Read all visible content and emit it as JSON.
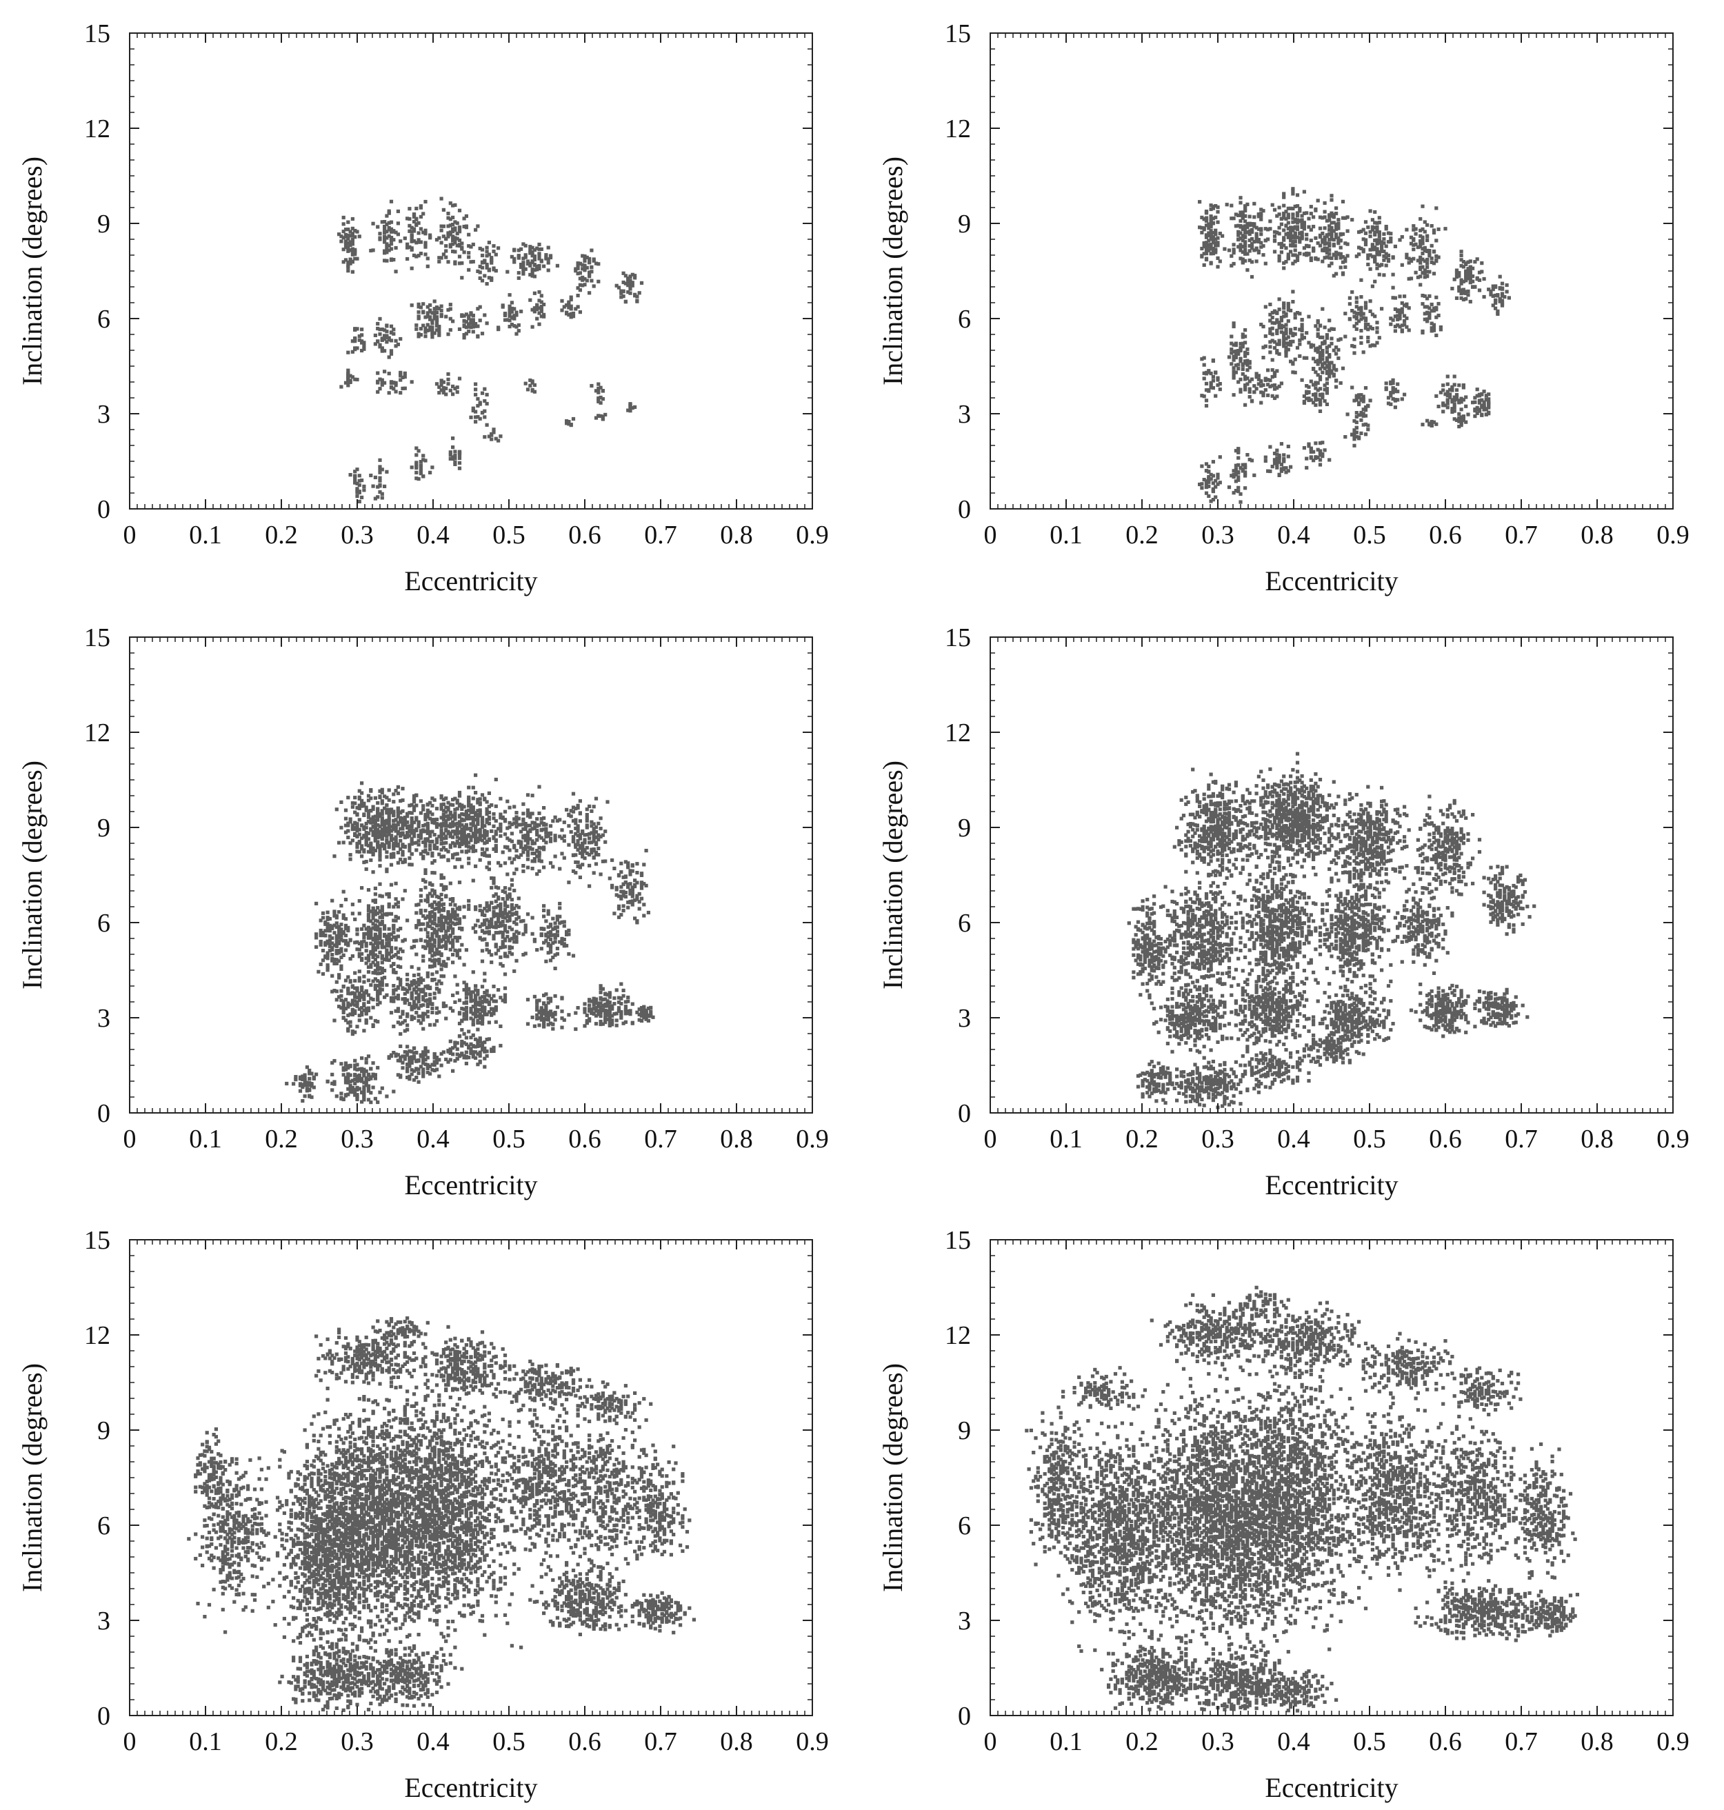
{
  "figure": {
    "background": "#ffffff",
    "point_color": "#5e5e5e",
    "axis_color": "#222222"
  },
  "chart_data": [
    {
      "type": "scatter",
      "panel": "top-left",
      "xlabel": "Eccentricity",
      "ylabel": "Inclination (degrees)",
      "xlim": [
        0,
        0.9
      ],
      "ylim": [
        0,
        15
      ],
      "xticks": [
        "0",
        "0.1",
        "0.2",
        "0.3",
        "0.4",
        "0.5",
        "0.6",
        "0.7",
        "0.8",
        "0.9"
      ],
      "yticks": [
        "0",
        "3",
        "6",
        "9",
        "12",
        "15"
      ],
      "grid": false,
      "clusters": [
        {
          "e": 0.29,
          "i": 8.3,
          "de": 0.01,
          "di": 0.7,
          "n": 70
        },
        {
          "e": 0.34,
          "i": 8.6,
          "de": 0.015,
          "di": 0.8,
          "n": 60
        },
        {
          "e": 0.38,
          "i": 8.6,
          "de": 0.015,
          "di": 0.8,
          "n": 60
        },
        {
          "e": 0.43,
          "i": 8.5,
          "de": 0.025,
          "di": 0.9,
          "n": 90
        },
        {
          "e": 0.47,
          "i": 7.7,
          "de": 0.012,
          "di": 0.6,
          "n": 40
        },
        {
          "e": 0.53,
          "i": 7.8,
          "de": 0.025,
          "di": 0.5,
          "n": 80
        },
        {
          "e": 0.6,
          "i": 7.5,
          "de": 0.015,
          "di": 0.6,
          "n": 50
        },
        {
          "e": 0.66,
          "i": 7.0,
          "de": 0.012,
          "di": 0.5,
          "n": 40
        },
        {
          "e": 0.3,
          "i": 5.3,
          "de": 0.008,
          "di": 0.5,
          "n": 25
        },
        {
          "e": 0.34,
          "i": 5.4,
          "de": 0.015,
          "di": 0.6,
          "n": 45
        },
        {
          "e": 0.4,
          "i": 5.9,
          "de": 0.025,
          "di": 0.6,
          "n": 80
        },
        {
          "e": 0.45,
          "i": 5.9,
          "de": 0.015,
          "di": 0.5,
          "n": 50
        },
        {
          "e": 0.5,
          "i": 6.1,
          "de": 0.015,
          "di": 0.4,
          "n": 40
        },
        {
          "e": 0.54,
          "i": 6.3,
          "de": 0.01,
          "di": 0.4,
          "n": 25
        },
        {
          "e": 0.58,
          "i": 6.3,
          "de": 0.012,
          "di": 0.4,
          "n": 25
        },
        {
          "e": 0.29,
          "i": 4.1,
          "de": 0.008,
          "di": 0.3,
          "n": 20
        },
        {
          "e": 0.35,
          "i": 4.0,
          "de": 0.02,
          "di": 0.3,
          "n": 35
        },
        {
          "e": 0.42,
          "i": 3.9,
          "de": 0.015,
          "di": 0.3,
          "n": 25
        },
        {
          "e": 0.46,
          "i": 3.3,
          "de": 0.012,
          "di": 0.6,
          "n": 25
        },
        {
          "e": 0.53,
          "i": 3.9,
          "de": 0.006,
          "di": 0.2,
          "n": 10
        },
        {
          "e": 0.62,
          "i": 3.6,
          "de": 0.008,
          "di": 0.3,
          "n": 15
        },
        {
          "e": 0.66,
          "i": 3.2,
          "de": 0.006,
          "di": 0.2,
          "n": 10
        },
        {
          "e": 0.58,
          "i": 2.7,
          "de": 0.008,
          "di": 0.1,
          "n": 10
        },
        {
          "e": 0.62,
          "i": 2.9,
          "de": 0.006,
          "di": 0.1,
          "n": 10
        },
        {
          "e": 0.3,
          "i": 0.7,
          "de": 0.008,
          "di": 0.5,
          "n": 25
        },
        {
          "e": 0.33,
          "i": 0.9,
          "de": 0.008,
          "di": 0.6,
          "n": 20
        },
        {
          "e": 0.38,
          "i": 1.4,
          "de": 0.012,
          "di": 0.5,
          "n": 25
        },
        {
          "e": 0.43,
          "i": 1.6,
          "de": 0.012,
          "di": 0.4,
          "n": 20
        },
        {
          "e": 0.48,
          "i": 2.3,
          "de": 0.008,
          "di": 0.2,
          "n": 10
        }
      ]
    },
    {
      "type": "scatter",
      "panel": "top-right",
      "xlabel": "Eccentricity",
      "ylabel": "Inclination (degrees)",
      "xlim": [
        0,
        0.9
      ],
      "ylim": [
        0,
        15
      ],
      "xticks": [
        "0",
        "0.1",
        "0.2",
        "0.3",
        "0.4",
        "0.5",
        "0.6",
        "0.7",
        "0.8",
        "0.9"
      ],
      "yticks": [
        "0",
        "3",
        "6",
        "9",
        "12",
        "15"
      ],
      "grid": false,
      "clusters": [
        {
          "e": 0.29,
          "i": 8.7,
          "de": 0.012,
          "di": 0.9,
          "n": 110
        },
        {
          "e": 0.34,
          "i": 8.7,
          "de": 0.025,
          "di": 1.0,
          "n": 150
        },
        {
          "e": 0.4,
          "i": 8.8,
          "de": 0.025,
          "di": 1.0,
          "n": 170
        },
        {
          "e": 0.45,
          "i": 8.5,
          "de": 0.02,
          "di": 1.0,
          "n": 140
        },
        {
          "e": 0.51,
          "i": 8.3,
          "de": 0.02,
          "di": 0.9,
          "n": 110
        },
        {
          "e": 0.57,
          "i": 8.2,
          "de": 0.02,
          "di": 0.9,
          "n": 100
        },
        {
          "e": 0.63,
          "i": 7.3,
          "de": 0.02,
          "di": 0.8,
          "n": 80
        },
        {
          "e": 0.67,
          "i": 6.7,
          "de": 0.01,
          "di": 0.5,
          "n": 40
        },
        {
          "e": 0.29,
          "i": 4.1,
          "de": 0.01,
          "di": 0.6,
          "n": 35
        },
        {
          "e": 0.33,
          "i": 4.8,
          "de": 0.015,
          "di": 1.0,
          "n": 80
        },
        {
          "e": 0.39,
          "i": 5.6,
          "de": 0.025,
          "di": 1.0,
          "n": 130
        },
        {
          "e": 0.44,
          "i": 4.8,
          "de": 0.02,
          "di": 1.0,
          "n": 110
        },
        {
          "e": 0.49,
          "i": 5.9,
          "de": 0.02,
          "di": 0.8,
          "n": 70
        },
        {
          "e": 0.54,
          "i": 6.2,
          "de": 0.012,
          "di": 0.6,
          "n": 40
        },
        {
          "e": 0.58,
          "i": 6.1,
          "de": 0.012,
          "di": 0.6,
          "n": 40
        },
        {
          "e": 0.36,
          "i": 3.9,
          "de": 0.02,
          "di": 0.5,
          "n": 50
        },
        {
          "e": 0.43,
          "i": 3.6,
          "de": 0.02,
          "di": 0.5,
          "n": 50
        },
        {
          "e": 0.49,
          "i": 3.3,
          "de": 0.012,
          "di": 0.6,
          "n": 40
        },
        {
          "e": 0.53,
          "i": 3.7,
          "de": 0.01,
          "di": 0.4,
          "n": 30
        },
        {
          "e": 0.61,
          "i": 3.5,
          "de": 0.015,
          "di": 0.5,
          "n": 60
        },
        {
          "e": 0.65,
          "i": 3.3,
          "de": 0.012,
          "di": 0.4,
          "n": 50
        },
        {
          "e": 0.58,
          "i": 2.7,
          "de": 0.01,
          "di": 0.1,
          "n": 15
        },
        {
          "e": 0.62,
          "i": 2.8,
          "de": 0.01,
          "di": 0.15,
          "n": 20
        },
        {
          "e": 0.29,
          "i": 0.9,
          "de": 0.012,
          "di": 0.6,
          "n": 45
        },
        {
          "e": 0.33,
          "i": 1.1,
          "de": 0.012,
          "di": 0.7,
          "n": 45
        },
        {
          "e": 0.38,
          "i": 1.5,
          "de": 0.015,
          "di": 0.5,
          "n": 40
        },
        {
          "e": 0.43,
          "i": 1.7,
          "de": 0.015,
          "di": 0.4,
          "n": 30
        },
        {
          "e": 0.48,
          "i": 2.3,
          "de": 0.01,
          "di": 0.2,
          "n": 15
        }
      ]
    },
    {
      "type": "scatter",
      "panel": "middle-left",
      "xlabel": "Eccentricity",
      "ylabel": "Inclination (degrees)",
      "xlim": [
        0,
        0.9
      ],
      "ylim": [
        0,
        15
      ],
      "xticks": [
        "0",
        "0.1",
        "0.2",
        "0.3",
        "0.4",
        "0.5",
        "0.6",
        "0.7",
        "0.8",
        "0.9"
      ],
      "yticks": [
        "0",
        "3",
        "6",
        "9",
        "12",
        "15"
      ],
      "grid": false,
      "clusters": [
        {
          "e": 0.34,
          "i": 9.0,
          "de": 0.05,
          "di": 1.0,
          "n": 500
        },
        {
          "e": 0.44,
          "i": 9.0,
          "de": 0.05,
          "di": 1.0,
          "n": 450
        },
        {
          "e": 0.53,
          "i": 8.7,
          "de": 0.03,
          "di": 1.0,
          "n": 180
        },
        {
          "e": 0.6,
          "i": 8.6,
          "de": 0.025,
          "di": 1.0,
          "n": 150
        },
        {
          "e": 0.66,
          "i": 7.0,
          "de": 0.02,
          "di": 0.8,
          "n": 100
        },
        {
          "e": 0.27,
          "i": 5.5,
          "de": 0.02,
          "di": 1.0,
          "n": 150
        },
        {
          "e": 0.33,
          "i": 5.5,
          "de": 0.03,
          "di": 1.5,
          "n": 300
        },
        {
          "e": 0.41,
          "i": 5.8,
          "de": 0.03,
          "di": 1.5,
          "n": 320
        },
        {
          "e": 0.49,
          "i": 6.0,
          "de": 0.03,
          "di": 1.2,
          "n": 220
        },
        {
          "e": 0.56,
          "i": 5.6,
          "de": 0.02,
          "di": 0.8,
          "n": 90
        },
        {
          "e": 0.3,
          "i": 3.5,
          "de": 0.03,
          "di": 0.8,
          "n": 150
        },
        {
          "e": 0.38,
          "i": 3.6,
          "de": 0.03,
          "di": 0.8,
          "n": 180
        },
        {
          "e": 0.46,
          "i": 3.4,
          "de": 0.03,
          "di": 0.7,
          "n": 150
        },
        {
          "e": 0.55,
          "i": 3.2,
          "de": 0.02,
          "di": 0.5,
          "n": 80
        },
        {
          "e": 0.63,
          "i": 3.3,
          "de": 0.03,
          "di": 0.5,
          "n": 160
        },
        {
          "e": 0.68,
          "i": 3.1,
          "de": 0.01,
          "di": 0.2,
          "n": 40
        },
        {
          "e": 0.23,
          "i": 0.9,
          "de": 0.015,
          "di": 0.4,
          "n": 50
        },
        {
          "e": 0.3,
          "i": 1.0,
          "de": 0.03,
          "di": 0.6,
          "n": 150
        },
        {
          "e": 0.38,
          "i": 1.6,
          "de": 0.03,
          "di": 0.5,
          "n": 120
        },
        {
          "e": 0.45,
          "i": 2.0,
          "de": 0.03,
          "di": 0.4,
          "n": 100
        }
      ]
    },
    {
      "type": "scatter",
      "panel": "middle-right",
      "xlabel": "Eccentricity",
      "ylabel": "Inclination (degrees)",
      "xlim": [
        0,
        0.9
      ],
      "ylim": [
        0,
        15
      ],
      "xticks": [
        "0",
        "0.1",
        "0.2",
        "0.3",
        "0.4",
        "0.5",
        "0.6",
        "0.7",
        "0.8",
        "0.9"
      ],
      "yticks": [
        "0",
        "3",
        "6",
        "9",
        "12",
        "15"
      ],
      "grid": false,
      "clusters": [
        {
          "e": 0.3,
          "i": 9.0,
          "de": 0.04,
          "di": 1.2,
          "n": 450
        },
        {
          "e": 0.4,
          "i": 9.3,
          "de": 0.05,
          "di": 1.2,
          "n": 650
        },
        {
          "e": 0.5,
          "i": 8.6,
          "de": 0.04,
          "di": 1.2,
          "n": 400
        },
        {
          "e": 0.6,
          "i": 8.3,
          "de": 0.03,
          "di": 1.2,
          "n": 250
        },
        {
          "e": 0.68,
          "i": 6.7,
          "de": 0.025,
          "di": 0.9,
          "n": 160
        },
        {
          "e": 0.21,
          "i": 5.3,
          "de": 0.02,
          "di": 1.2,
          "n": 200
        },
        {
          "e": 0.28,
          "i": 5.5,
          "de": 0.04,
          "di": 1.6,
          "n": 450
        },
        {
          "e": 0.38,
          "i": 5.8,
          "de": 0.04,
          "di": 1.6,
          "n": 600
        },
        {
          "e": 0.48,
          "i": 5.8,
          "de": 0.04,
          "di": 1.5,
          "n": 450
        },
        {
          "e": 0.57,
          "i": 5.8,
          "de": 0.03,
          "di": 1.0,
          "n": 200
        },
        {
          "e": 0.27,
          "i": 3.0,
          "de": 0.04,
          "di": 0.8,
          "n": 300
        },
        {
          "e": 0.37,
          "i": 3.2,
          "de": 0.04,
          "di": 0.8,
          "n": 350
        },
        {
          "e": 0.48,
          "i": 3.0,
          "de": 0.04,
          "di": 0.7,
          "n": 280
        },
        {
          "e": 0.6,
          "i": 3.2,
          "de": 0.03,
          "di": 0.6,
          "n": 200
        },
        {
          "e": 0.67,
          "i": 3.3,
          "de": 0.025,
          "di": 0.5,
          "n": 150
        },
        {
          "e": 0.22,
          "i": 1.0,
          "de": 0.02,
          "di": 0.5,
          "n": 100
        },
        {
          "e": 0.29,
          "i": 0.9,
          "de": 0.04,
          "di": 0.6,
          "n": 220
        },
        {
          "e": 0.37,
          "i": 1.4,
          "de": 0.04,
          "di": 0.5,
          "n": 150
        },
        {
          "e": 0.45,
          "i": 2.0,
          "de": 0.03,
          "di": 0.4,
          "n": 100
        }
      ]
    },
    {
      "type": "scatter",
      "panel": "bottom-left",
      "xlabel": "Eccentricity",
      "ylabel": "Inclination (degrees)",
      "xlim": [
        0,
        0.9
      ],
      "ylim": [
        0,
        15
      ],
      "xticks": [
        "0",
        "0.1",
        "0.2",
        "0.3",
        "0.4",
        "0.5",
        "0.6",
        "0.7",
        "0.8",
        "0.9"
      ],
      "yticks": [
        "0",
        "3",
        "6",
        "9",
        "12",
        "15"
      ],
      "grid": false,
      "clusters": [
        {
          "e": 0.33,
          "i": 6.3,
          "de": 0.08,
          "di": 3.0,
          "n": 1800
        },
        {
          "e": 0.42,
          "i": 6.5,
          "de": 0.07,
          "di": 3.0,
          "n": 1400
        },
        {
          "e": 0.26,
          "i": 5.2,
          "de": 0.05,
          "di": 2.6,
          "n": 900
        },
        {
          "e": 0.14,
          "i": 5.8,
          "de": 0.04,
          "di": 2.0,
          "n": 350
        },
        {
          "e": 0.11,
          "i": 7.5,
          "de": 0.02,
          "di": 1.2,
          "n": 120
        },
        {
          "e": 0.55,
          "i": 7.3,
          "de": 0.05,
          "di": 2.0,
          "n": 450
        },
        {
          "e": 0.63,
          "i": 7.0,
          "de": 0.05,
          "di": 2.0,
          "n": 380
        },
        {
          "e": 0.7,
          "i": 6.5,
          "de": 0.03,
          "di": 1.3,
          "n": 200
        },
        {
          "e": 0.6,
          "i": 3.6,
          "de": 0.05,
          "di": 0.8,
          "n": 300
        },
        {
          "e": 0.7,
          "i": 3.3,
          "de": 0.03,
          "di": 0.5,
          "n": 150
        },
        {
          "e": 0.27,
          "i": 1.2,
          "de": 0.05,
          "di": 0.8,
          "n": 350
        },
        {
          "e": 0.36,
          "i": 1.3,
          "de": 0.05,
          "di": 0.8,
          "n": 300
        },
        {
          "e": 0.32,
          "i": 11.3,
          "de": 0.06,
          "di": 0.7,
          "n": 250
        },
        {
          "e": 0.44,
          "i": 11.0,
          "de": 0.05,
          "di": 0.8,
          "n": 250
        },
        {
          "e": 0.55,
          "i": 10.5,
          "de": 0.05,
          "di": 0.6,
          "n": 160
        },
        {
          "e": 0.63,
          "i": 9.8,
          "de": 0.04,
          "di": 0.5,
          "n": 100
        },
        {
          "e": 0.36,
          "i": 12.2,
          "de": 0.03,
          "di": 0.3,
          "n": 60
        }
      ]
    },
    {
      "type": "scatter",
      "panel": "bottom-right",
      "xlabel": "Eccentricity",
      "ylabel": "Inclination (degrees)",
      "xlim": [
        0,
        0.9
      ],
      "ylim": [
        0,
        15
      ],
      "xticks": [
        "0",
        "0.1",
        "0.2",
        "0.3",
        "0.4",
        "0.5",
        "0.6",
        "0.7",
        "0.8",
        "0.9"
      ],
      "yticks": [
        "0",
        "3",
        "6",
        "9",
        "12",
        "15"
      ],
      "grid": false,
      "clusters": [
        {
          "e": 0.3,
          "i": 6.3,
          "de": 0.08,
          "di": 3.2,
          "n": 1900
        },
        {
          "e": 0.4,
          "i": 6.8,
          "de": 0.07,
          "di": 3.2,
          "n": 1500
        },
        {
          "e": 0.17,
          "i": 5.8,
          "de": 0.06,
          "di": 2.6,
          "n": 1000
        },
        {
          "e": 0.09,
          "i": 7.3,
          "de": 0.03,
          "di": 1.8,
          "n": 300
        },
        {
          "e": 0.53,
          "i": 7.0,
          "de": 0.06,
          "di": 2.2,
          "n": 700
        },
        {
          "e": 0.64,
          "i": 7.0,
          "de": 0.05,
          "di": 2.0,
          "n": 450
        },
        {
          "e": 0.73,
          "i": 6.3,
          "de": 0.03,
          "di": 1.5,
          "n": 250
        },
        {
          "e": 0.65,
          "i": 3.3,
          "de": 0.06,
          "di": 0.7,
          "n": 350
        },
        {
          "e": 0.74,
          "i": 3.2,
          "de": 0.03,
          "di": 0.5,
          "n": 150
        },
        {
          "e": 0.22,
          "i": 1.2,
          "de": 0.05,
          "di": 0.8,
          "n": 400
        },
        {
          "e": 0.33,
          "i": 1.1,
          "de": 0.05,
          "di": 0.8,
          "n": 350
        },
        {
          "e": 0.4,
          "i": 0.8,
          "de": 0.04,
          "di": 0.5,
          "n": 150
        },
        {
          "e": 0.3,
          "i": 12.0,
          "de": 0.06,
          "di": 0.8,
          "n": 300
        },
        {
          "e": 0.42,
          "i": 11.8,
          "de": 0.06,
          "di": 0.8,
          "n": 300
        },
        {
          "e": 0.55,
          "i": 11.0,
          "de": 0.05,
          "di": 0.7,
          "n": 200
        },
        {
          "e": 0.65,
          "i": 10.3,
          "de": 0.04,
          "di": 0.6,
          "n": 120
        },
        {
          "e": 0.15,
          "i": 10.2,
          "de": 0.04,
          "di": 0.5,
          "n": 100
        },
        {
          "e": 0.36,
          "i": 13.0,
          "de": 0.03,
          "di": 0.4,
          "n": 60
        }
      ]
    }
  ]
}
